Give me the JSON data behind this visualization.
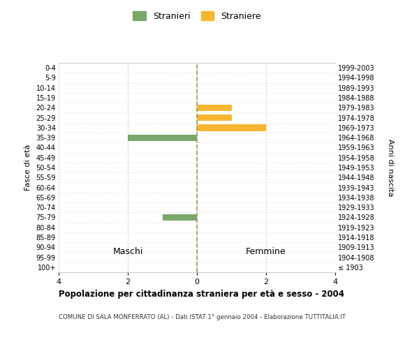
{
  "age_groups": [
    "100+",
    "95-99",
    "90-94",
    "85-89",
    "80-84",
    "75-79",
    "70-74",
    "65-69",
    "60-64",
    "55-59",
    "50-54",
    "45-49",
    "40-44",
    "35-39",
    "30-34",
    "25-29",
    "20-24",
    "15-19",
    "10-14",
    "5-9",
    "0-4"
  ],
  "birth_years": [
    "≤ 1903",
    "1904-1908",
    "1909-1913",
    "1914-1918",
    "1919-1923",
    "1924-1928",
    "1929-1933",
    "1934-1938",
    "1939-1943",
    "1944-1948",
    "1949-1953",
    "1954-1958",
    "1959-1963",
    "1964-1968",
    "1969-1973",
    "1974-1978",
    "1979-1983",
    "1984-1988",
    "1989-1993",
    "1994-1998",
    "1999-2003"
  ],
  "maschi": [
    0,
    0,
    0,
    0,
    0,
    1,
    0,
    0,
    0,
    0,
    0,
    0,
    0,
    2,
    0,
    0,
    0,
    0,
    0,
    0,
    0
  ],
  "femmine": [
    0,
    0,
    0,
    0,
    0,
    0,
    0,
    0,
    0,
    0,
    0,
    0,
    0,
    0,
    2,
    1,
    1,
    0,
    0,
    0,
    0
  ],
  "stranieri_color": "#7aA86a",
  "straniere_color": "#F5B731",
  "background_color": "#ffffff",
  "grid_color": "#cccccc",
  "title": "Popolazione per cittadinanza straniera per età e sesso - 2004",
  "subtitle": "COMUNE DI SALA MONFERRATO (AL) - Dati ISTAT 1° gennaio 2004 - Elaborazione TUTTITALIA.IT",
  "ylabel_left": "Fasce di età",
  "ylabel_right": "Anni di nascita",
  "xlabel_maschi": "Maschi",
  "xlabel_femmine": "Femmine",
  "xlim": 4,
  "legend_stranieri": "Stranieri",
  "legend_straniere": "Straniere"
}
